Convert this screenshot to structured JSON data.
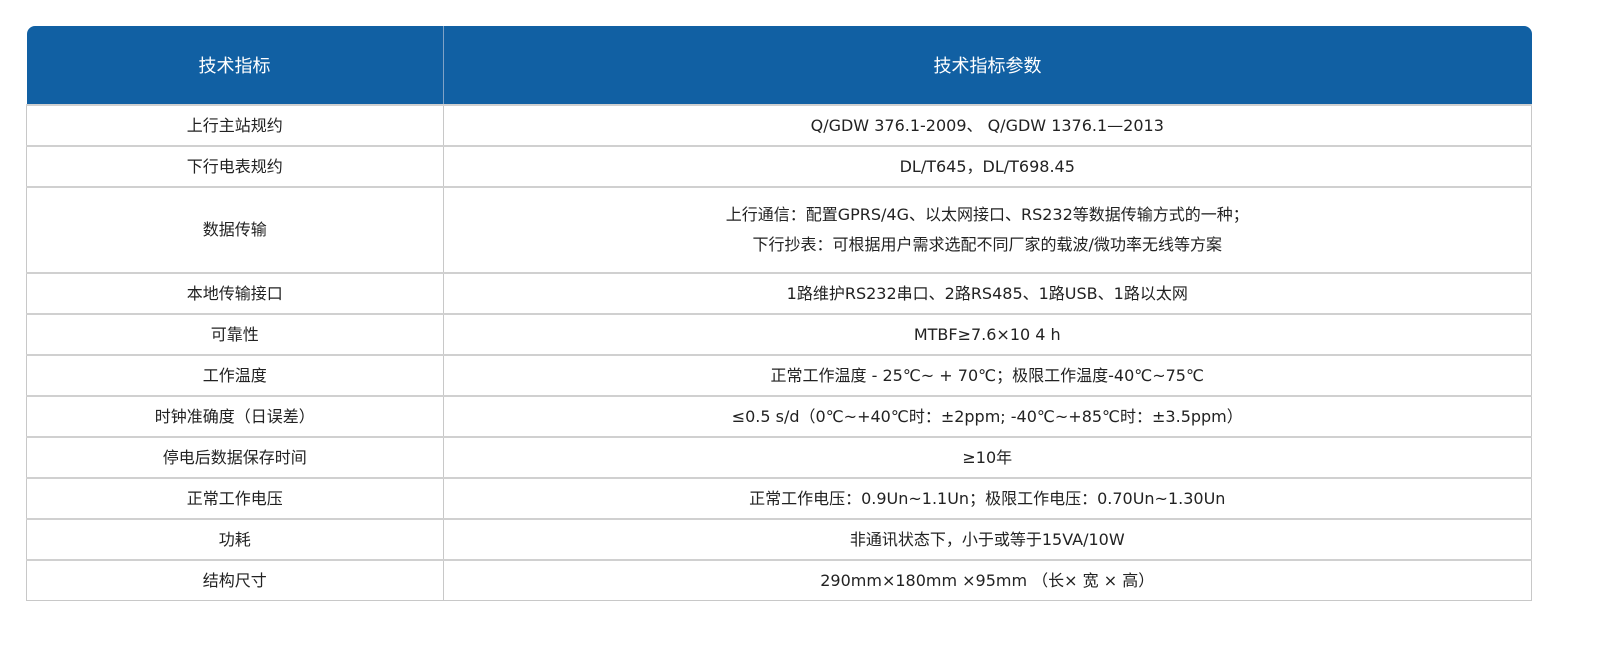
{
  "table": {
    "headers": [
      "技术指标",
      "技术指标参数"
    ],
    "rows": [
      {
        "name": "上行主站规约",
        "value": [
          "Q/GDW 376.1-2009、 Q/GDW 1376.1—2013"
        ]
      },
      {
        "name": "下行电表规约",
        "value": [
          "DL/T645，DL/T698.45"
        ]
      },
      {
        "name": "数据传输",
        "value": [
          "上行通信：配置GPRS/4G、以太网接口、RS232等数据传输方式的一种；",
          "下行抄表：可根据用户需求选配不同厂家的载波/微功率无线等方案"
        ]
      },
      {
        "name": "本地传输接口",
        "value": [
          "1路维护RS232串口、2路RS485、1路USB、1路以太网"
        ]
      },
      {
        "name": "可靠性",
        "value": [
          "MTBF≥7.6×10 4 h"
        ]
      },
      {
        "name": "工作温度",
        "value": [
          "正常工作温度 - 25℃~ + 70℃；极限工作温度-40℃~75℃"
        ]
      },
      {
        "name": "时钟准确度（日误差）",
        "value": [
          "≤0.5 s/d（0℃~+40℃时：±2ppm;   -40℃~+85℃时：±3.5ppm）"
        ]
      },
      {
        "name": "停电后数据保存时间",
        "value": [
          "≥10年"
        ]
      },
      {
        "name": "正常工作电压",
        "value": [
          "正常工作电压：0.9Un~1.1Un；极限工作电压：0.70Un~1.30Un"
        ]
      },
      {
        "name": "功耗",
        "value": [
          "非通讯状态下，小于或等于15VA/10W"
        ]
      },
      {
        "name": "结构尺寸",
        "value": [
          "290mm×180mm ×95mm （长× 宽 × 高）"
        ]
      }
    ]
  },
  "colors": {
    "header_bg": "#1160a3",
    "header_text": "#ffffff",
    "border": "#c8c8c8"
  }
}
